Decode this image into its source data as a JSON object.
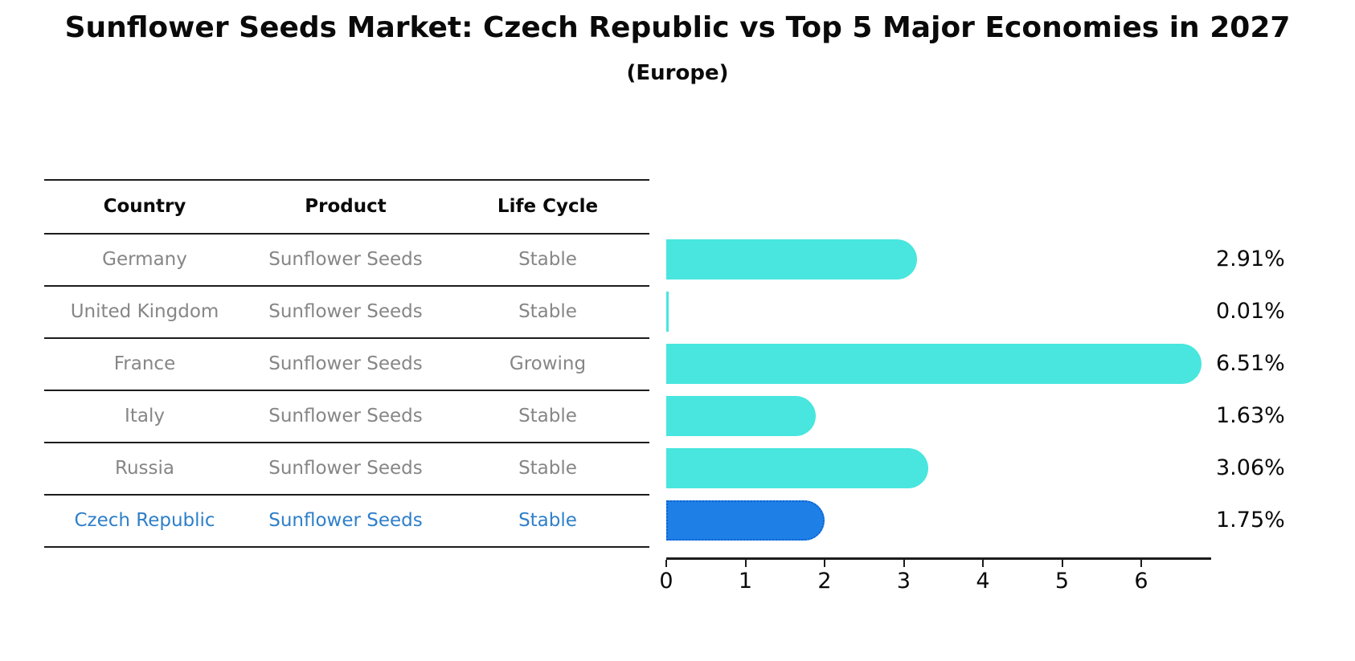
{
  "title": "Sunflower Seeds Market: Czech Republic vs Top 5 Major Economies in 2027",
  "subtitle": "(Europe)",
  "table": {
    "headers": [
      "Country",
      "Product",
      "Life Cycle"
    ],
    "rows": [
      {
        "country": "Germany",
        "product": "Sunflower Seeds",
        "life_cycle": "Stable",
        "highlight": false
      },
      {
        "country": "United Kingdom",
        "product": "Sunflower Seeds",
        "life_cycle": "Stable",
        "highlight": false
      },
      {
        "country": "France",
        "product": "Sunflower Seeds",
        "life_cycle": "Growing",
        "highlight": false
      },
      {
        "country": "Italy",
        "product": "Sunflower Seeds",
        "life_cycle": "Stable",
        "highlight": false
      },
      {
        "country": "Russia",
        "product": "Sunflower Seeds",
        "life_cycle": "Stable",
        "highlight": false
      },
      {
        "country": "Czech Republic",
        "product": "Sunflower Seeds",
        "life_cycle": "Stable",
        "highlight": true
      }
    ]
  },
  "chart_data": {
    "type": "bar",
    "orientation": "horizontal",
    "title": "Sunflower Seeds Market: Czech Republic vs Top 5 Major Economies in 2027 (Europe)",
    "categories": [
      "Germany",
      "United Kingdom",
      "France",
      "Italy",
      "Russia",
      "Czech Republic"
    ],
    "values": [
      2.91,
      0.01,
      6.51,
      1.63,
      3.06,
      1.75
    ],
    "value_labels": [
      "2.91%",
      "0.01%",
      "6.51%",
      "1.63%",
      "3.06%",
      "1.75%"
    ],
    "xlabel": "",
    "ylabel": "",
    "xlim": [
      0,
      6.88
    ],
    "x_ticks": [
      0,
      1,
      2,
      3,
      4,
      5,
      6
    ],
    "grid": false,
    "legend": false,
    "highlight_index": 5
  },
  "colors": {
    "bar": "#48e6de",
    "highlight_bar": "#1e80e6",
    "highlight_bar_border": "#0e62d0",
    "highlight_text": "#2e7fc9",
    "table_text": "#868686",
    "line": "#1c1c1c",
    "text": "#0a0a0a"
  }
}
